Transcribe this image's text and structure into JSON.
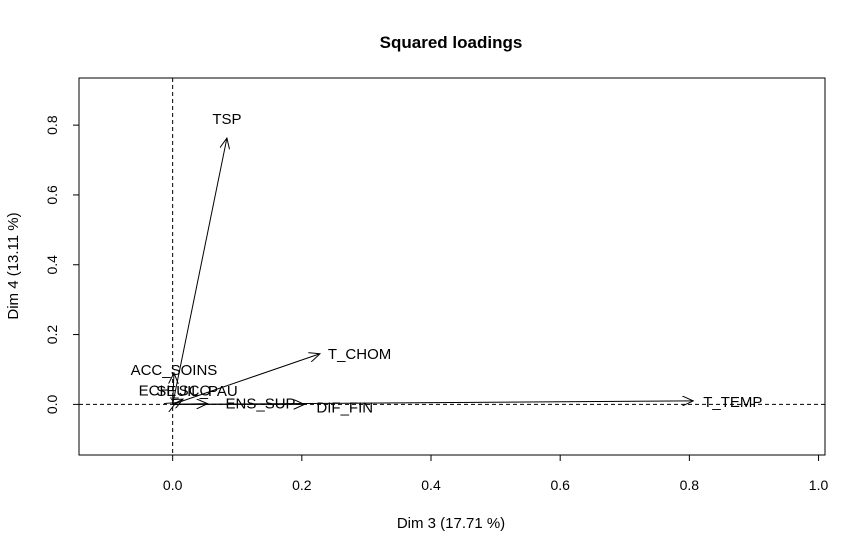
{
  "chart_data": {
    "type": "scatter",
    "title": "Squared loadings",
    "xlabel": "Dim 3 (17.71 %)",
    "ylabel": "Dim 4 (13.11 %)",
    "xlim": [
      -0.145,
      1.01
    ],
    "ylim": [
      -0.145,
      0.935
    ],
    "xticks": [
      "0.0",
      "0.2",
      "0.4",
      "0.6",
      "0.8",
      "1.0"
    ],
    "xtick_values": [
      0,
      0.2,
      0.4,
      0.6,
      0.8,
      1.0
    ],
    "yticks": [
      "0.0",
      "0.2",
      "0.4",
      "0.6",
      "0.8"
    ],
    "ytick_values": [
      0,
      0.2,
      0.4,
      0.6,
      0.8
    ],
    "reference_lines": {
      "x": 0,
      "y": 0,
      "style": "dashed"
    },
    "grid": false,
    "arrows": [
      {
        "label": "TSP",
        "x": 0.084,
        "y": 0.763
      },
      {
        "label": "T_CHOM",
        "x": 0.228,
        "y": 0.145
      },
      {
        "label": "T_TEMP",
        "x": 0.806,
        "y": 0.01
      },
      {
        "label": "DIF_FIN",
        "x": 0.204,
        "y": 0.0
      },
      {
        "label": "ENS_SUP",
        "x": 0.054,
        "y": 0.002
      },
      {
        "label": "ACC_SOINS",
        "x": 0.002,
        "y": 0.09
      },
      {
        "label": "SEUIL_PAU",
        "x": 0.016,
        "y": 0.015
      },
      {
        "label": "ECH_SCO",
        "x": 0.005,
        "y": 0.005
      }
    ]
  }
}
